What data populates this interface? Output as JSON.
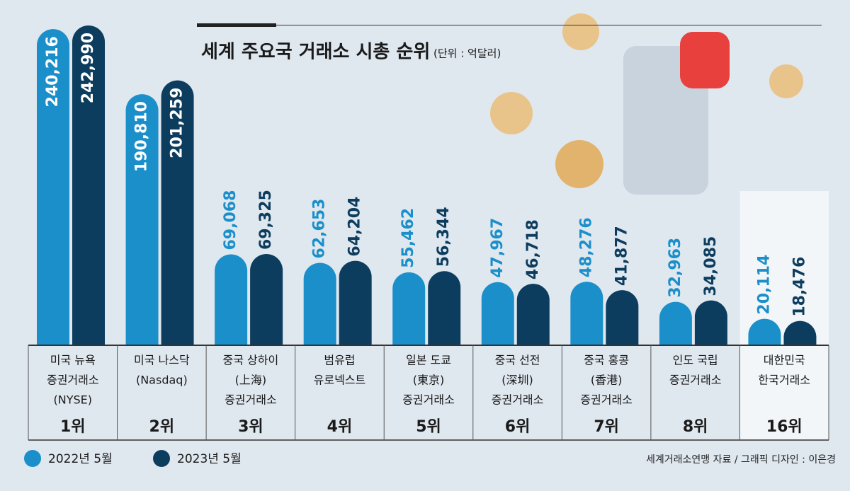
{
  "chart_data": {
    "type": "bar",
    "title": "세계 주요국 거래소 시총 순위",
    "unit": "(단위 : 억달러)",
    "categories": [
      [
        "미국 뉴욕",
        "증권거래소",
        "(NYSE)"
      ],
      [
        "미국 나스닥",
        "(Nasdaq)"
      ],
      [
        "중국 상하이",
        "(上海)",
        "증권거래소"
      ],
      [
        "범유럽",
        "유로넥스트"
      ],
      [
        "일본 도쿄",
        "(東京)",
        "증권거래소"
      ],
      [
        "중국 선전",
        "(深圳)",
        "증권거래소"
      ],
      [
        "중국 홍콩",
        "(香港)",
        "증권거래소"
      ],
      [
        "인도 국립",
        "증권거래소"
      ],
      [
        "대한민국",
        "한국거래소"
      ]
    ],
    "ranks": [
      "1위",
      "2위",
      "3위",
      "4위",
      "5위",
      "6위",
      "7위",
      "8위",
      "16위"
    ],
    "series": [
      {
        "name": "2022년 5월",
        "color": "#1b8fc9",
        "values": [
          240216,
          190810,
          69068,
          62653,
          55462,
          47967,
          48276,
          32963,
          20114
        ],
        "value_labels": [
          "240,216",
          "190,810",
          "69,068",
          "62,653",
          "55,462",
          "47,967",
          "48,276",
          "32,963",
          "20,114"
        ]
      },
      {
        "name": "2023년 5월",
        "color": "#0d3d5e",
        "values": [
          242990,
          201259,
          69325,
          64204,
          56344,
          46718,
          41877,
          34085,
          18476
        ],
        "value_labels": [
          "242,990",
          "201,259",
          "69,325",
          "64,204",
          "56,344",
          "46,718",
          "41,877",
          "34,085",
          "18,476"
        ]
      }
    ],
    "source": "세계거래소연맹 자료 / 그래픽 디자인 : 이은경"
  }
}
